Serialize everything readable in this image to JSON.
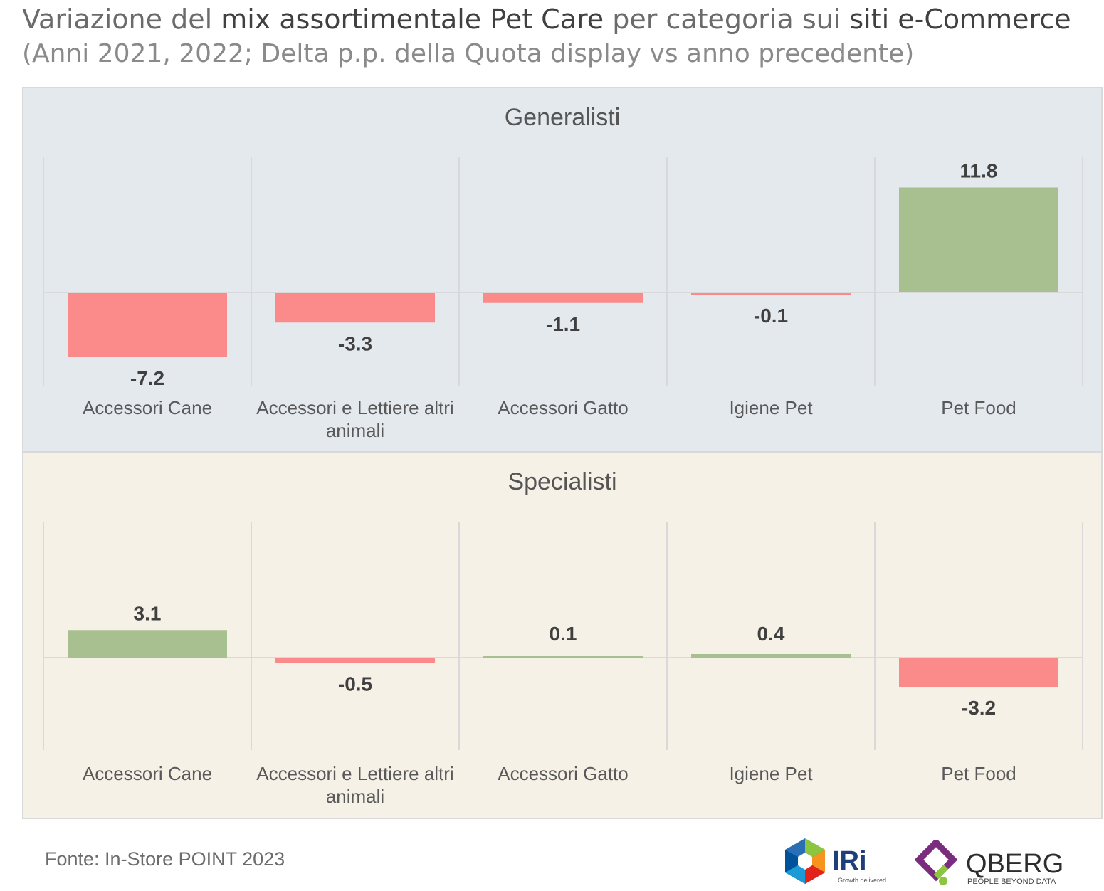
{
  "title": {
    "part1": "Variazione del ",
    "part2": "mix assortimentale Pet Care",
    "part3": " per categoria sui ",
    "part4": "siti e-Commerce"
  },
  "subtitle": "(Anni 2021, 2022; Delta p.p. della Quota display vs anno precedente)",
  "colors": {
    "positive": "#a8c08f",
    "negative": "#fb8a8a",
    "grid": "#d9d9d9"
  },
  "chart_data": [
    {
      "type": "bar",
      "title": "Generalisti",
      "categories": [
        "Accessori Cane",
        "Accessori e Lettiere altri animali",
        "Accessori Gatto",
        "Igiene Pet",
        "Pet Food"
      ],
      "category_lines": [
        [
          "Accessori Cane"
        ],
        [
          "Accessori e Lettiere altri",
          "animali"
        ],
        [
          "Accessori Gatto"
        ],
        [
          "Igiene Pet"
        ],
        [
          "Pet Food"
        ]
      ],
      "values": [
        -7.2,
        -3.3,
        -1.1,
        -0.1,
        11.8
      ],
      "labels": [
        "-7.2",
        "-3.3",
        "-1.1",
        "-0.1",
        "11.8"
      ]
    },
    {
      "type": "bar",
      "title": "Specialisti",
      "categories": [
        "Accessori Cane",
        "Accessori e Lettiere altri animali",
        "Accessori Gatto",
        "Igiene Pet",
        "Pet Food"
      ],
      "category_lines": [
        [
          "Accessori Cane"
        ],
        [
          "Accessori e Lettiere altri",
          "animali"
        ],
        [
          "Accessori Gatto"
        ],
        [
          "Igiene Pet"
        ],
        [
          "Pet Food"
        ]
      ],
      "values": [
        3.1,
        -0.5,
        0.1,
        0.4,
        -3.2
      ],
      "labels": [
        "3.1",
        "-0.5",
        "0.1",
        "0.4",
        "-3.2"
      ]
    }
  ],
  "source": "Fonte: In-Store POINT 2023",
  "logos": {
    "iri_text": "IRi",
    "iri_tagline": "Growth delivered.",
    "qberg_text": "QBERG",
    "qberg_tagline": "PEOPLE BEYOND DATA"
  }
}
